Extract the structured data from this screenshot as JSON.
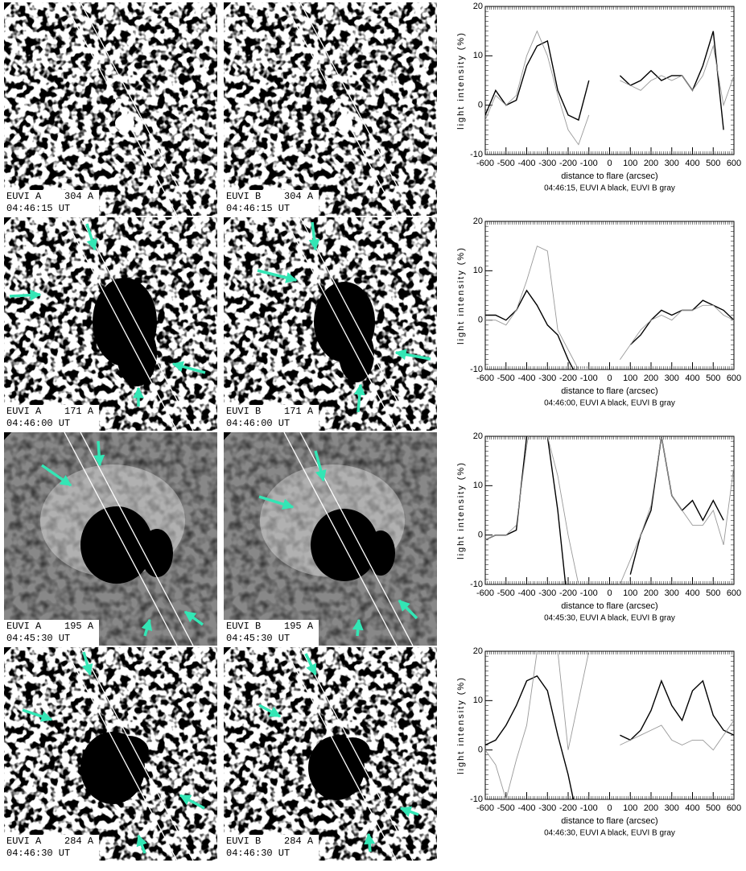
{
  "panels": [
    {
      "label": "EUVI A    304 A",
      "time": "04:46:15 UT"
    },
    {
      "label": "EUVI B    304 A",
      "time": "04:46:15 UT"
    },
    {
      "label": "EUVI A    171 A",
      "time": "04:46:00 UT"
    },
    {
      "label": "EUVI B    171 A",
      "time": "04:46:00 UT"
    },
    {
      "label": "EUVI A    195 A",
      "time": "04:45:30 UT"
    },
    {
      "label": "EUVI B    195 A",
      "time": "04:45:30 UT"
    },
    {
      "label": "EUVI A    284 A",
      "time": "04:46:30 UT"
    },
    {
      "label": "EUVI B    284 A",
      "time": "04:46:30 UT"
    }
  ],
  "chart_data": [
    {
      "type": "line",
      "xlabel": "distance to flare (arcsec)",
      "ylabel": "light intensity (%)",
      "caption": "04:46:15, EUVI A black, EUVI B gray",
      "x": [
        -600,
        -550,
        -500,
        -450,
        -400,
        -350,
        -300,
        -250,
        -200,
        -150,
        -100,
        -50,
        0,
        50,
        100,
        150,
        200,
        250,
        300,
        350,
        400,
        450,
        500,
        550,
        600
      ],
      "series": [
        {
          "color": "#000000",
          "values": [
            -2,
            3,
            0,
            1,
            8,
            12,
            13,
            3,
            -2,
            -3,
            5,
            null,
            null,
            6,
            4,
            5,
            7,
            5,
            6,
            6,
            3,
            8,
            15,
            -5,
            null
          ]
        },
        {
          "color": "#999999",
          "values": [
            -3,
            2,
            0,
            2,
            10,
            15,
            10,
            2,
            -5,
            -8,
            -2,
            null,
            null,
            5,
            4,
            3,
            5,
            6,
            5,
            6,
            3,
            6,
            12,
            0,
            6
          ]
        }
      ],
      "xlim": [
        -600,
        600
      ],
      "ylim": [
        -10,
        20
      ],
      "xticks": [
        -600,
        -500,
        -400,
        -300,
        -200,
        -100,
        0,
        100,
        200,
        300,
        400,
        500,
        600
      ],
      "yticks": [
        -10,
        0,
        10,
        20
      ]
    },
    {
      "type": "line",
      "xlabel": "distance to flare (arcsec)",
      "ylabel": "light intensity (%)",
      "caption": "04:46:00, EUVI A black, EUVI B gray",
      "x": [
        -600,
        -550,
        -500,
        -450,
        -400,
        -350,
        -300,
        -250,
        -200,
        -150,
        -100,
        -50,
        0,
        50,
        100,
        150,
        200,
        250,
        300,
        350,
        400,
        450,
        500,
        550,
        600
      ],
      "series": [
        {
          "color": "#000000",
          "values": [
            1,
            1,
            0,
            2,
            6,
            3,
            -1,
            -3,
            -8,
            -12,
            null,
            null,
            null,
            null,
            -5,
            -3,
            0,
            2,
            1,
            2,
            2,
            4,
            3,
            2,
            0
          ]
        },
        {
          "color": "#999999",
          "values": [
            0,
            0,
            -1,
            2,
            8,
            15,
            14,
            -2,
            -6,
            -10,
            -10,
            null,
            null,
            -8,
            -5,
            -2,
            0,
            1,
            0,
            2,
            2,
            3,
            3,
            1,
            0
          ]
        }
      ],
      "xlim": [
        -600,
        600
      ],
      "ylim": [
        -10,
        20
      ],
      "xticks": [
        -600,
        -500,
        -400,
        -300,
        -200,
        -100,
        0,
        100,
        200,
        300,
        400,
        500,
        600
      ],
      "yticks": [
        -10,
        0,
        10,
        20
      ]
    },
    {
      "type": "line",
      "xlabel": "distance to flare (arcsec)",
      "ylabel": "light intensity (%)",
      "caption": "04:45:30, EUVI A black, EUVI B gray",
      "x": [
        -600,
        -550,
        -500,
        -450,
        -400,
        -350,
        -300,
        -250,
        -200,
        -150,
        -100,
        -50,
        0,
        50,
        100,
        150,
        200,
        250,
        300,
        350,
        400,
        450,
        500,
        550,
        600
      ],
      "series": [
        {
          "color": "#000000",
          "values": [
            -1,
            0,
            0,
            1,
            20,
            30,
            20,
            5,
            -15,
            null,
            null,
            null,
            null,
            null,
            -8,
            0,
            5,
            20,
            8,
            5,
            7,
            3,
            7,
            3,
            null
          ]
        },
        {
          "color": "#999999",
          "values": [
            -1,
            0,
            0,
            2,
            18,
            30,
            20,
            12,
            0,
            -10,
            null,
            null,
            null,
            -10,
            -5,
            0,
            6,
            20,
            8,
            5,
            2,
            2,
            5,
            -2,
            14
          ]
        }
      ],
      "xlim": [
        -600,
        600
      ],
      "ylim": [
        -10,
        20
      ],
      "xticks": [
        -600,
        -500,
        -400,
        -300,
        -200,
        -100,
        0,
        100,
        200,
        300,
        400,
        500,
        600
      ],
      "yticks": [
        -10,
        0,
        10,
        20
      ]
    },
    {
      "type": "line",
      "xlabel": "distance to flare (arcsec)",
      "ylabel": "light intensity (%)",
      "caption": "04:46:30, EUVI A black, EUVI B gray",
      "x": [
        -600,
        -550,
        -500,
        -450,
        -400,
        -350,
        -300,
        -250,
        -200,
        -150,
        -100,
        -50,
        0,
        50,
        100,
        150,
        200,
        250,
        300,
        350,
        400,
        450,
        500,
        550,
        600
      ],
      "series": [
        {
          "color": "#000000",
          "values": [
            1,
            2,
            5,
            9,
            14,
            15,
            12,
            3,
            -5,
            -15,
            null,
            null,
            null,
            3,
            2,
            4,
            8,
            14,
            9,
            6,
            12,
            14,
            7,
            4,
            3
          ]
        },
        {
          "color": "#999999",
          "values": [
            0,
            -3,
            -10,
            -2,
            5,
            20,
            25,
            20,
            0,
            10,
            20,
            null,
            null,
            1,
            2,
            3,
            4,
            5,
            2,
            1,
            2,
            2,
            0,
            3,
            6
          ]
        }
      ],
      "xlim": [
        -600,
        600
      ],
      "ylim": [
        -10,
        20
      ],
      "xticks": [
        -600,
        -500,
        -400,
        -300,
        -200,
        -100,
        0,
        100,
        200,
        300,
        400,
        500,
        600
      ],
      "yticks": [
        -10,
        0,
        10,
        20
      ]
    }
  ]
}
